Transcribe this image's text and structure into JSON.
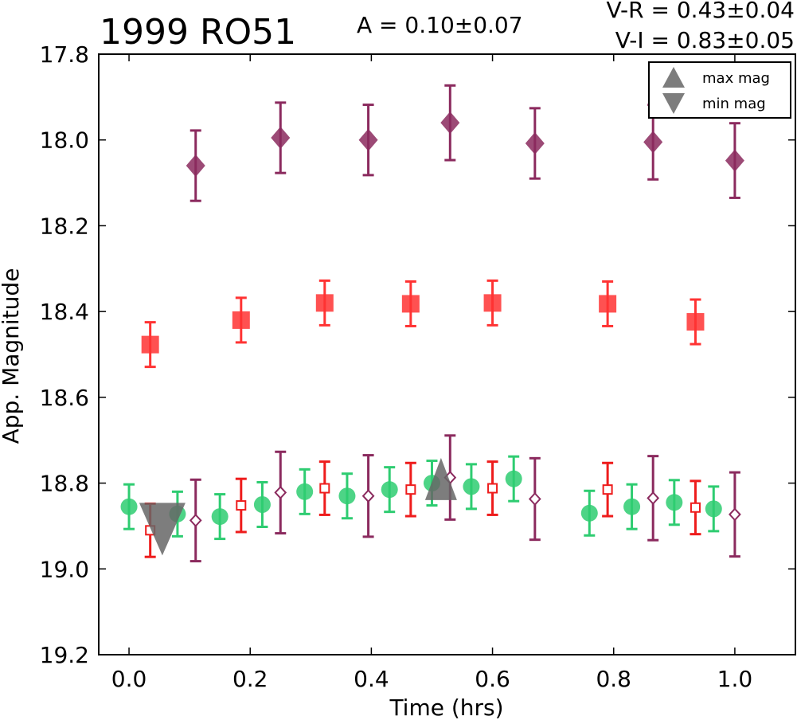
{
  "chart_data": {
    "type": "scatter",
    "title": "1999 RO51",
    "xlabel": "Time (hrs)",
    "ylabel": "App. Magnitude",
    "xlim": [
      -0.05,
      1.1
    ],
    "ylim": [
      19.2,
      17.8
    ],
    "y_inverted": true,
    "xticks": [
      "0.0",
      "0.2",
      "0.4",
      "0.6",
      "0.8",
      "1.0"
    ],
    "yticks": [
      "17.8",
      "18.0",
      "18.2",
      "18.4",
      "18.6",
      "18.8",
      "19.0",
      "19.2"
    ],
    "annotations": {
      "amplitude": "A  = 0.10±0.07",
      "v_r": "V-R = 0.43±0.04",
      "v_i": "V-I  = 0.83±0.05"
    },
    "legend": {
      "placement": "top-right",
      "entries": [
        {
          "label": "max mag",
          "marker": "triangle-up"
        },
        {
          "label": "min mag",
          "marker": "triangle-down"
        }
      ]
    },
    "series": [
      {
        "marker": "diamond",
        "color": "#8b2a5e",
        "filled": true,
        "points": [
          {
            "x": 0.11,
            "y": 18.06,
            "err": 0.082
          },
          {
            "x": 0.25,
            "y": 17.995,
            "err": 0.082
          },
          {
            "x": 0.395,
            "y": 18.0,
            "err": 0.082
          },
          {
            "x": 0.53,
            "y": 17.96,
            "err": 0.087
          },
          {
            "x": 0.67,
            "y": 18.008,
            "err": 0.082
          },
          {
            "x": 0.865,
            "y": 18.005,
            "err": 0.087
          },
          {
            "x": 1.0,
            "y": 18.048,
            "err": 0.087
          }
        ]
      },
      {
        "marker": "square",
        "color": "#ff3333",
        "filled": true,
        "points": [
          {
            "x": 0.035,
            "y": 18.477,
            "err": 0.052
          },
          {
            "x": 0.185,
            "y": 18.42,
            "err": 0.052
          },
          {
            "x": 0.323,
            "y": 18.38,
            "err": 0.052
          },
          {
            "x": 0.465,
            "y": 18.382,
            "err": 0.052
          },
          {
            "x": 0.6,
            "y": 18.38,
            "err": 0.052
          },
          {
            "x": 0.79,
            "y": 18.382,
            "err": 0.052
          },
          {
            "x": 0.935,
            "y": 18.424,
            "err": 0.052
          }
        ]
      },
      {
        "marker": "circle",
        "color": "#2ecc71",
        "filled": true,
        "points": [
          {
            "x": 0.0,
            "y": 18.855,
            "err": 0.052
          },
          {
            "x": 0.08,
            "y": 18.872,
            "err": 0.052
          },
          {
            "x": 0.15,
            "y": 18.878,
            "err": 0.052
          },
          {
            "x": 0.22,
            "y": 18.85,
            "err": 0.052
          },
          {
            "x": 0.29,
            "y": 18.82,
            "err": 0.052
          },
          {
            "x": 0.36,
            "y": 18.83,
            "err": 0.052
          },
          {
            "x": 0.43,
            "y": 18.815,
            "err": 0.052
          },
          {
            "x": 0.5,
            "y": 18.8,
            "err": 0.052
          },
          {
            "x": 0.565,
            "y": 18.808,
            "err": 0.052
          },
          {
            "x": 0.635,
            "y": 18.79,
            "err": 0.052
          },
          {
            "x": 0.76,
            "y": 18.87,
            "err": 0.052
          },
          {
            "x": 0.83,
            "y": 18.855,
            "err": 0.052
          },
          {
            "x": 0.9,
            "y": 18.845,
            "err": 0.052
          },
          {
            "x": 0.965,
            "y": 18.86,
            "err": 0.052
          }
        ]
      },
      {
        "marker": "square",
        "color": "#ee1c1c",
        "filled": false,
        "points": [
          {
            "x": 0.035,
            "y": 18.91,
            "err": 0.062
          },
          {
            "x": 0.185,
            "y": 18.852,
            "err": 0.062
          },
          {
            "x": 0.323,
            "y": 18.812,
            "err": 0.062
          },
          {
            "x": 0.465,
            "y": 18.815,
            "err": 0.062
          },
          {
            "x": 0.6,
            "y": 18.812,
            "err": 0.062
          },
          {
            "x": 0.79,
            "y": 18.815,
            "err": 0.062
          },
          {
            "x": 0.935,
            "y": 18.857,
            "err": 0.062
          }
        ]
      },
      {
        "marker": "diamond",
        "color": "#8b2a5e",
        "filled": false,
        "points": [
          {
            "x": 0.11,
            "y": 18.887,
            "err": 0.095
          },
          {
            "x": 0.25,
            "y": 18.822,
            "err": 0.095
          },
          {
            "x": 0.395,
            "y": 18.83,
            "err": 0.095
          },
          {
            "x": 0.53,
            "y": 18.787,
            "err": 0.098
          },
          {
            "x": 0.67,
            "y": 18.837,
            "err": 0.095
          },
          {
            "x": 0.865,
            "y": 18.835,
            "err": 0.098
          },
          {
            "x": 1.0,
            "y": 18.873,
            "err": 0.098
          }
        ]
      },
      {
        "marker": "triangle-up",
        "color": "#666666",
        "filled": true,
        "role": "max mag",
        "points": [
          {
            "x": 0.515,
            "y": 18.795
          }
        ]
      },
      {
        "marker": "triangle-down",
        "color": "#666666",
        "filled": true,
        "role": "min mag",
        "points": [
          {
            "x": 0.055,
            "y": 18.9
          }
        ]
      }
    ]
  }
}
